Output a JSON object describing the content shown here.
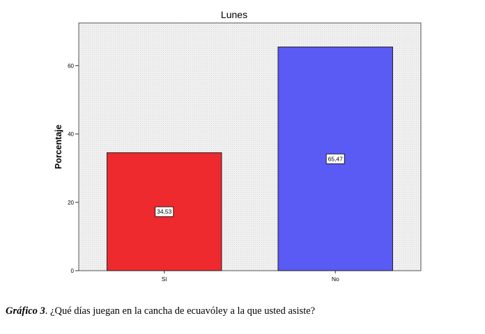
{
  "chart_data": {
    "type": "bar",
    "title": "Lunes",
    "xlabel": "",
    "ylabel": "Porcentaje",
    "categories": [
      "Sí",
      "No"
    ],
    "values": [
      34.53,
      65.47
    ],
    "value_labels": [
      "34,53",
      "65,47"
    ],
    "ylim": [
      0,
      72.5
    ],
    "yticks": [
      0,
      20,
      40,
      60
    ],
    "ytick_labels": [
      "0",
      "20",
      "40",
      "60"
    ],
    "grid": false,
    "legend": "none",
    "colors": {
      "plot_background": "#f0f0f0",
      "bars": [
        "#ee2a2f",
        "#5a5af5"
      ]
    }
  },
  "caption": {
    "lead": "Gráfico 3",
    "text": ". ¿Qué días juegan en la cancha de ecuavóley a la que usted asiste?"
  }
}
